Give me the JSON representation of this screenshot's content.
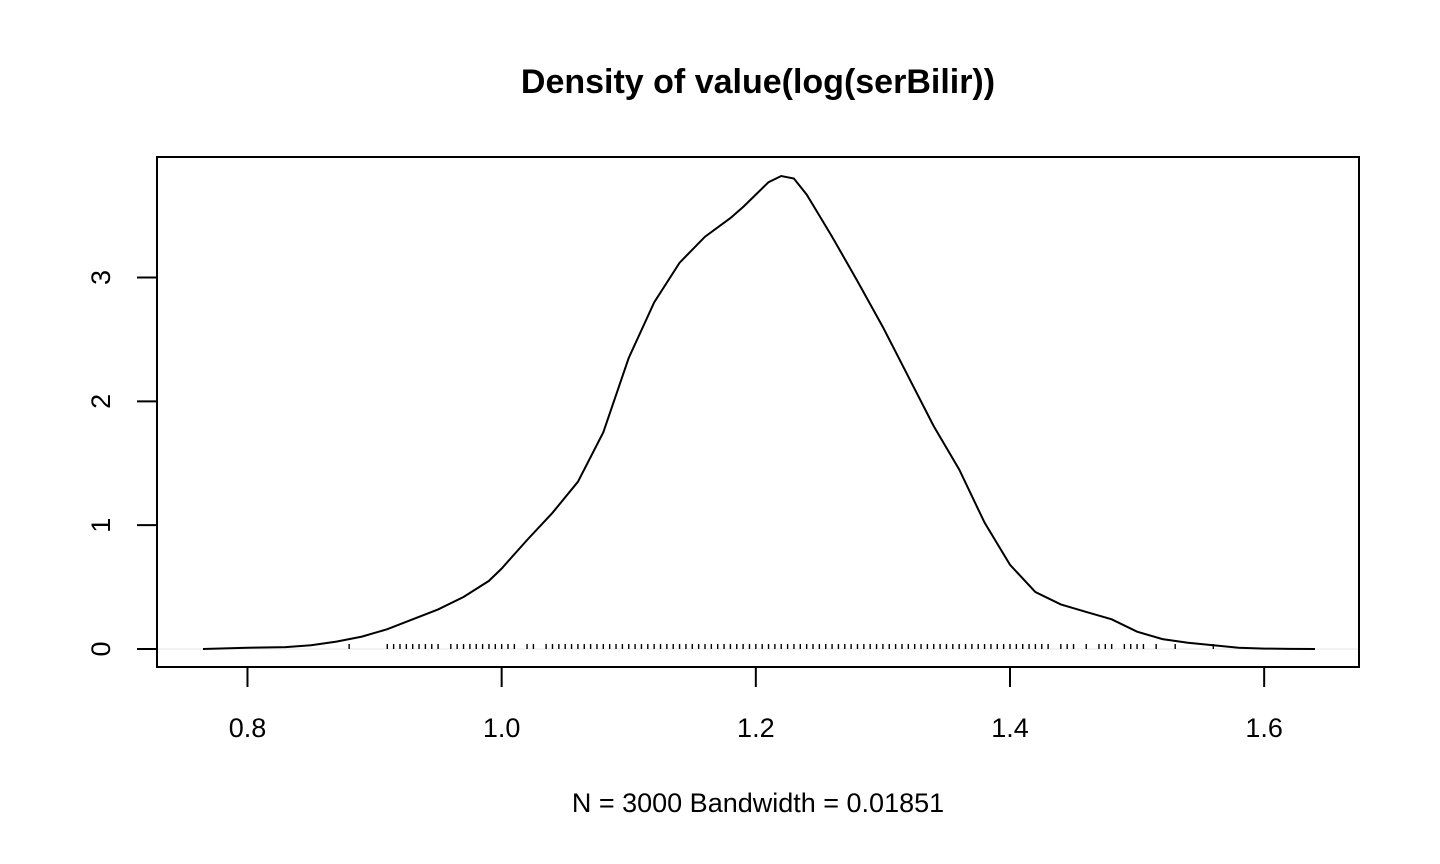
{
  "chart_data": {
    "type": "line",
    "title": "Density of value(log(serBilir))",
    "xlabel": "N = 3000   Bandwidth = 0.01851",
    "ylabel": "",
    "xlim": [
      0.765,
      1.64
    ],
    "ylim": [
      0,
      3.82
    ],
    "x_ticks": [
      0.8,
      1.0,
      1.2,
      1.4,
      1.6
    ],
    "x_tick_labels": [
      "0.8",
      "1.0",
      "1.2",
      "1.4",
      "1.6"
    ],
    "y_ticks": [
      0,
      1,
      2,
      3
    ],
    "y_tick_labels": [
      "0",
      "1",
      "2",
      "3"
    ],
    "grid": false,
    "legend": "none",
    "line_color": "#000000",
    "baseline_color": "#e6e6e6",
    "series": [
      {
        "x": [
          0.765,
          0.8,
          0.83,
          0.85,
          0.87,
          0.89,
          0.91,
          0.93,
          0.95,
          0.97,
          0.99,
          1.0,
          1.02,
          1.04,
          1.06,
          1.08,
          1.1,
          1.12,
          1.14,
          1.16,
          1.18,
          1.19,
          1.2,
          1.21,
          1.22,
          1.23,
          1.24,
          1.25,
          1.26,
          1.28,
          1.3,
          1.32,
          1.34,
          1.36,
          1.38,
          1.4,
          1.42,
          1.44,
          1.46,
          1.48,
          1.5,
          1.52,
          1.54,
          1.56,
          1.58,
          1.6,
          1.62,
          1.64
        ],
        "y": [
          0.0,
          0.01,
          0.015,
          0.03,
          0.06,
          0.1,
          0.16,
          0.24,
          0.32,
          0.42,
          0.55,
          0.65,
          0.88,
          1.1,
          1.35,
          1.75,
          2.35,
          2.8,
          3.12,
          3.33,
          3.48,
          3.57,
          3.67,
          3.77,
          3.82,
          3.8,
          3.67,
          3.5,
          3.33,
          2.97,
          2.6,
          2.2,
          1.8,
          1.45,
          1.02,
          0.68,
          0.46,
          0.36,
          0.3,
          0.24,
          0.14,
          0.08,
          0.05,
          0.03,
          0.01,
          0.003,
          0.001,
          0.0
        ]
      }
    ],
    "rug_x": [
      0.88,
      0.91,
      0.915,
      0.92,
      0.925,
      0.93,
      0.935,
      0.94,
      0.945,
      0.95,
      0.96,
      0.965,
      0.97,
      0.975,
      0.98,
      0.985,
      0.99,
      0.995,
      1.0,
      1.005,
      1.01,
      1.02,
      1.025,
      1.035,
      1.04,
      1.045,
      1.05,
      1.055,
      1.06,
      1.065,
      1.07,
      1.075,
      1.08,
      1.085,
      1.09,
      1.095,
      1.1,
      1.105,
      1.11,
      1.115,
      1.12,
      1.125,
      1.13,
      1.135,
      1.14,
      1.145,
      1.15,
      1.155,
      1.16,
      1.165,
      1.17,
      1.175,
      1.18,
      1.185,
      1.19,
      1.195,
      1.2,
      1.205,
      1.21,
      1.215,
      1.22,
      1.225,
      1.23,
      1.235,
      1.24,
      1.245,
      1.25,
      1.255,
      1.26,
      1.265,
      1.27,
      1.275,
      1.28,
      1.285,
      1.29,
      1.295,
      1.3,
      1.305,
      1.31,
      1.315,
      1.32,
      1.325,
      1.33,
      1.335,
      1.34,
      1.345,
      1.35,
      1.355,
      1.36,
      1.365,
      1.37,
      1.375,
      1.38,
      1.385,
      1.39,
      1.395,
      1.4,
      1.405,
      1.41,
      1.415,
      1.42,
      1.425,
      1.43,
      1.44,
      1.445,
      1.45,
      1.46,
      1.47,
      1.475,
      1.48,
      1.49,
      1.495,
      1.5,
      1.505,
      1.515,
      1.53,
      1.56
    ]
  }
}
